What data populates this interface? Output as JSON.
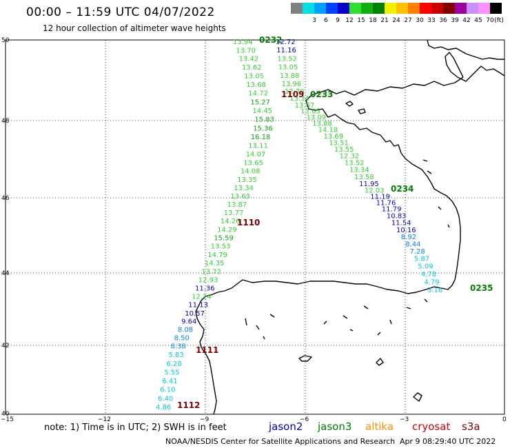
{
  "header": {
    "title": "00:00 – 11:59 UTC 04/07/2022",
    "subtitle": "12 hour collection of altimeter wave heights"
  },
  "legend": {
    "unit": "(ft)",
    "items": [
      {
        "label": "",
        "color": "#808080"
      },
      {
        "label": "3",
        "color": "#00e0e0"
      },
      {
        "label": "6",
        "color": "#00a0ff"
      },
      {
        "label": "9",
        "color": "#0040ff"
      },
      {
        "label": "12",
        "color": "#0000c8"
      },
      {
        "label": "15",
        "color": "#30e030"
      },
      {
        "label": "18",
        "color": "#10b010"
      },
      {
        "label": "21",
        "color": "#008000"
      },
      {
        "label": "24",
        "color": "#f0f000"
      },
      {
        "label": "27",
        "color": "#ffc000"
      },
      {
        "label": "30",
        "color": "#ff8000"
      },
      {
        "label": "33",
        "color": "#ff0000"
      },
      {
        "label": "36",
        "color": "#c80000"
      },
      {
        "label": "39",
        "color": "#800000"
      },
      {
        "label": "42",
        "color": "#a000a0"
      },
      {
        "label": "45",
        "color": "#c890ff"
      },
      {
        "label": "70",
        "color": "#ff90ff"
      },
      {
        "label": "",
        "color": "#000000"
      }
    ]
  },
  "axes": {
    "lat_ticks": [
      "50",
      "48",
      "46",
      "44",
      "42",
      "40"
    ],
    "lon_ticks": [
      "−15",
      "−12",
      "−9",
      "−6",
      "−3",
      "0"
    ]
  },
  "passes": [
    {
      "label": "0232",
      "color": "#008000"
    },
    {
      "label": "1109",
      "color": "#800000"
    },
    {
      "label": "0233",
      "color": "#008000"
    },
    {
      "label": "0234",
      "color": "#008000"
    },
    {
      "label": "1110",
      "color": "#800000"
    },
    {
      "label": "0235",
      "color": "#008000"
    },
    {
      "label": "1111",
      "color": "#800000"
    },
    {
      "label": "1112",
      "color": "#800000"
    }
  ],
  "tracks": [
    {
      "name": "track-a",
      "points": [
        {
          "v": "13.94",
          "c": "#30d030"
        },
        {
          "v": "13.70",
          "c": "#30d030"
        },
        {
          "v": "13.42",
          "c": "#30d030"
        },
        {
          "v": "13.62",
          "c": "#30d030"
        },
        {
          "v": "13.05",
          "c": "#30d030"
        },
        {
          "v": "13.68",
          "c": "#30d030"
        },
        {
          "v": "14.72",
          "c": "#30d030"
        },
        {
          "v": "15.27",
          "c": "#10a010"
        },
        {
          "v": "14.45",
          "c": "#30d030"
        },
        {
          "v": "15.83",
          "c": "#10a010"
        },
        {
          "v": "15.36",
          "c": "#10a010"
        },
        {
          "v": "16.18",
          "c": "#10a010"
        },
        {
          "v": "13.11",
          "c": "#30d030"
        },
        {
          "v": "14.07",
          "c": "#30d030"
        },
        {
          "v": "13.65",
          "c": "#30d030"
        },
        {
          "v": "14.08",
          "c": "#30d030"
        },
        {
          "v": "13.35",
          "c": "#30d030"
        },
        {
          "v": "13.34",
          "c": "#30d030"
        },
        {
          "v": "13.63",
          "c": "#30d030"
        },
        {
          "v": "13.87",
          "c": "#30d030"
        },
        {
          "v": "13.77",
          "c": "#30d030"
        },
        {
          "v": "14.26",
          "c": "#30d030"
        },
        {
          "v": "14.29",
          "c": "#30d030"
        },
        {
          "v": "15.59",
          "c": "#10a010"
        },
        {
          "v": "13.53",
          "c": "#30d030"
        },
        {
          "v": "14.79",
          "c": "#30d030"
        },
        {
          "v": "14.35",
          "c": "#30d030"
        },
        {
          "v": "13.72",
          "c": "#30d030"
        },
        {
          "v": "12.93",
          "c": "#30d030"
        },
        {
          "v": "11.36",
          "c": "#0000c8"
        },
        {
          "v": "12.14",
          "c": "#30d030"
        },
        {
          "v": "11.13",
          "c": "#0000c8"
        },
        {
          "v": "10.57",
          "c": "#0000c8"
        },
        {
          "v": "9.64",
          "c": "#0000c8"
        },
        {
          "v": "8.08",
          "c": "#0080ff"
        },
        {
          "v": "8.50",
          "c": "#0080ff"
        },
        {
          "v": "8.38",
          "c": "#0080ff"
        },
        {
          "v": "5.83",
          "c": "#00c8e0"
        },
        {
          "v": "6.28",
          "c": "#00c8e0"
        },
        {
          "v": "5.55",
          "c": "#00c8e0"
        },
        {
          "v": "6.41",
          "c": "#00c8e0"
        },
        {
          "v": "6.10",
          "c": "#00c8e0"
        },
        {
          "v": "6.40",
          "c": "#00c8e0"
        },
        {
          "v": "4.86",
          "c": "#00c8e0"
        }
      ]
    },
    {
      "name": "track-b",
      "points": [
        {
          "v": "12.72",
          "c": "#0000c8"
        },
        {
          "v": "11.16",
          "c": "#0000c8"
        },
        {
          "v": "13.52",
          "c": "#30d030"
        },
        {
          "v": "13.05",
          "c": "#30d030"
        },
        {
          "v": "13.88",
          "c": "#30d030"
        },
        {
          "v": "13.96",
          "c": "#30d030"
        },
        {
          "v": "12.70",
          "c": "#30d030"
        },
        {
          "v": "13.34",
          "c": "#30d030"
        },
        {
          "v": "13.67",
          "c": "#30d030"
        },
        {
          "v": "13.65",
          "c": "#30d030"
        },
        {
          "v": "13.09",
          "c": "#30d030"
        },
        {
          "v": "13.88",
          "c": "#30d030"
        },
        {
          "v": "14.18",
          "c": "#30d030"
        },
        {
          "v": "13.69",
          "c": "#30d030"
        },
        {
          "v": "13.51",
          "c": "#30d030"
        },
        {
          "v": "13.55",
          "c": "#30d030"
        },
        {
          "v": "12.32",
          "c": "#30d030"
        },
        {
          "v": "13.52",
          "c": "#30d030"
        },
        {
          "v": "13.34",
          "c": "#30d030"
        },
        {
          "v": "13.58",
          "c": "#30d030"
        },
        {
          "v": "11.95",
          "c": "#0000c8"
        },
        {
          "v": "12.03",
          "c": "#30d030"
        },
        {
          "v": "11.19",
          "c": "#0000c8"
        },
        {
          "v": "11.76",
          "c": "#0000c8"
        },
        {
          "v": "11.79",
          "c": "#0000c8"
        },
        {
          "v": "10.83",
          "c": "#0000c8"
        },
        {
          "v": "11.54",
          "c": "#0000c8"
        },
        {
          "v": "10.16",
          "c": "#0000c8"
        },
        {
          "v": "8.92",
          "c": "#0080ff"
        },
        {
          "v": "8.44",
          "c": "#0080ff"
        },
        {
          "v": "7.28",
          "c": "#0080ff"
        },
        {
          "v": "5.87",
          "c": "#00c8e0"
        },
        {
          "v": "5.09",
          "c": "#00c8e0"
        },
        {
          "v": "4.78",
          "c": "#00c8e0"
        },
        {
          "v": "4.79",
          "c": "#00c8e0"
        },
        {
          "v": "3.16",
          "c": "#00c8e0"
        }
      ]
    }
  ],
  "footer": {
    "note": "note: 1) Time is in UTC; 2) SWH is in feet",
    "satellites": [
      {
        "name": "jason2",
        "color": "#0000c8"
      },
      {
        "name": "jason3",
        "color": "#008000"
      },
      {
        "name": "altika",
        "color": "#ff9000"
      },
      {
        "name": "cryosat",
        "color": "#d00000"
      },
      {
        "name": "s3a",
        "color": "#800000"
      }
    ],
    "credit": "NOAA/NESDIS Center for Satellite Applications and Research",
    "timestamp": "Apr  9 08:29:40 UTC 2022"
  }
}
